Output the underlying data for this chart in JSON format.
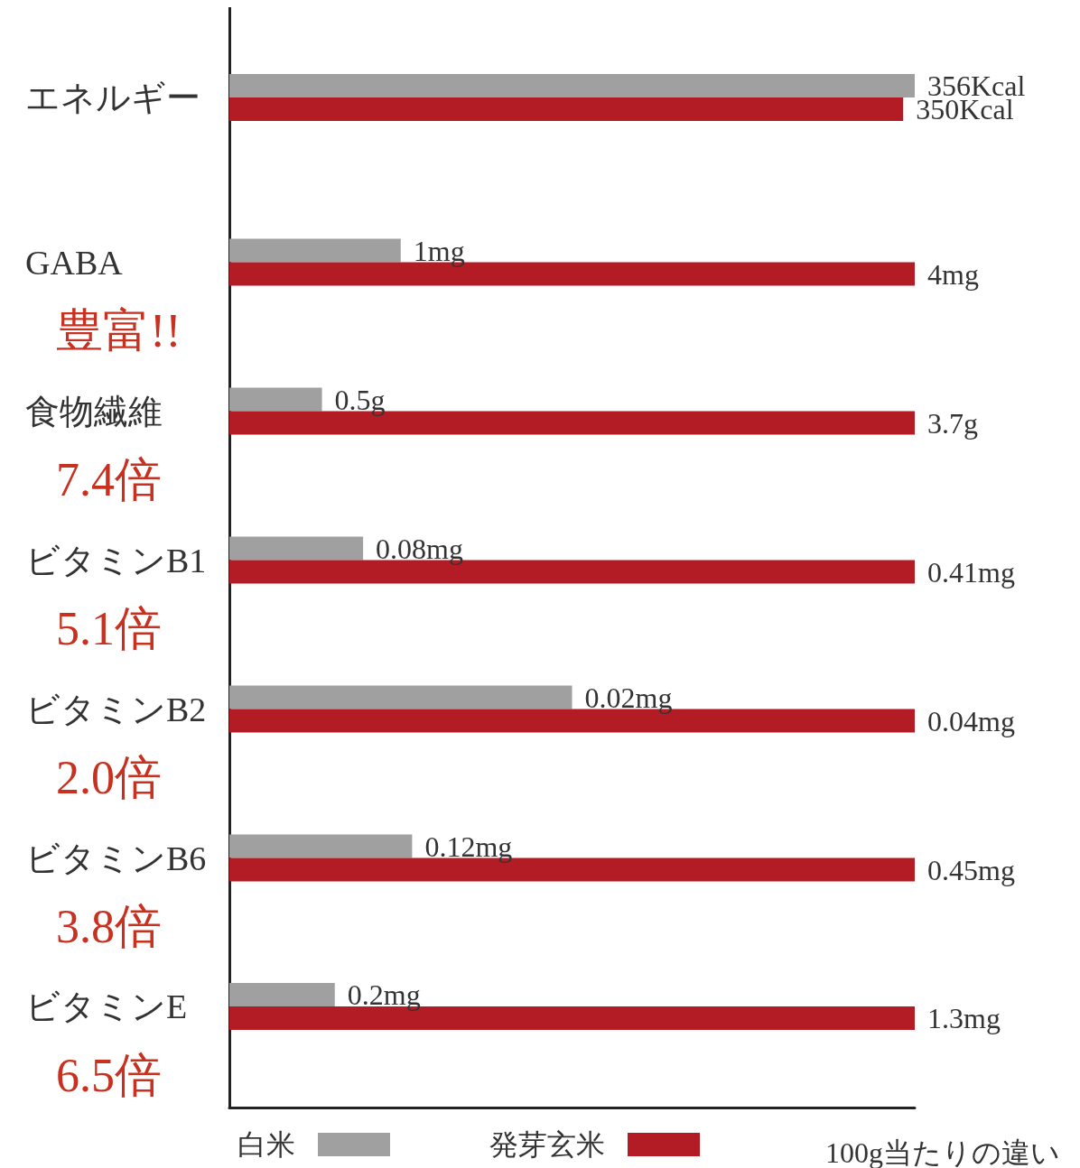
{
  "chart_data": [
    {
      "type": "bar",
      "orientation": "horizontal",
      "categories": [
        "エネルギー"
      ],
      "xlim": [
        0,
        356
      ],
      "tick_labels": "y",
      "series": [
        {
          "color": "#a0a0a0",
          "values": [
            356
          ],
          "value_labels": [
            "356Kcal"
          ]
        },
        {
          "color": "#b31c25",
          "values": [
            350
          ],
          "value_labels": [
            "350Kcal"
          ]
        }
      ]
    },
    {
      "type": "bar",
      "orientation": "horizontal",
      "categories": [
        "GABA"
      ],
      "xlim": [
        0,
        4
      ],
      "tick_labels": "y",
      "annotations": [
        "豊富!!"
      ],
      "series": [
        {
          "color": "#a0a0a0",
          "values": [
            1
          ],
          "value_labels": [
            "1mg"
          ]
        },
        {
          "color": "#b31c25",
          "values": [
            4
          ],
          "value_labels": [
            "4mg"
          ]
        }
      ]
    },
    {
      "type": "bar",
      "orientation": "horizontal",
      "categories": [
        "食物繊維"
      ],
      "xlim": [
        0,
        3.7
      ],
      "tick_labels": "y",
      "annotations": [
        "7.4倍"
      ],
      "series": [
        {
          "color": "#a0a0a0",
          "values": [
            0.5
          ],
          "value_labels": [
            "0.5g"
          ]
        },
        {
          "color": "#b31c25",
          "values": [
            3.7
          ],
          "value_labels": [
            "3.7g"
          ]
        }
      ]
    },
    {
      "type": "bar",
      "orientation": "horizontal",
      "categories": [
        "ビタミンB1"
      ],
      "xlim": [
        0,
        0.41
      ],
      "tick_labels": "y",
      "annotations": [
        "5.1倍"
      ],
      "series": [
        {
          "color": "#a0a0a0",
          "values": [
            0.08
          ],
          "value_labels": [
            "0.08mg"
          ]
        },
        {
          "color": "#b31c25",
          "values": [
            0.41
          ],
          "value_labels": [
            "0.41mg"
          ]
        }
      ]
    },
    {
      "type": "bar",
      "orientation": "horizontal",
      "categories": [
        "ビタミンB2"
      ],
      "xlim": [
        0,
        0.04
      ],
      "tick_labels": "y",
      "annotations": [
        "2.0倍"
      ],
      "series": [
        {
          "color": "#a0a0a0",
          "values": [
            0.02
          ],
          "value_labels": [
            "0.02mg"
          ]
        },
        {
          "color": "#b31c25",
          "values": [
            0.04
          ],
          "value_labels": [
            "0.04mg"
          ]
        }
      ]
    },
    {
      "type": "bar",
      "orientation": "horizontal",
      "categories": [
        "ビタミンB6"
      ],
      "xlim": [
        0,
        0.45
      ],
      "tick_labels": "y",
      "annotations": [
        "3.8倍"
      ],
      "series": [
        {
          "color": "#a0a0a0",
          "values": [
            0.12
          ],
          "value_labels": [
            "0.12mg"
          ]
        },
        {
          "color": "#b31c25",
          "values": [
            0.45
          ],
          "value_labels": [
            "0.45mg"
          ]
        }
      ]
    },
    {
      "type": "bar",
      "orientation": "horizontal",
      "categories": [
        "ビタミンE"
      ],
      "xlim": [
        0,
        1.3
      ],
      "tick_labels": "y",
      "annotations": [
        "6.5倍"
      ],
      "legend": "bottom",
      "legend_title": "100g当たりの違い",
      "series": [
        {
          "name": "白米",
          "color": "#a0a0a0",
          "values": [
            0.2
          ],
          "value_labels": [
            "0.2mg"
          ]
        },
        {
          "name": "発芽玄米",
          "color": "#b31c25",
          "values": [
            1.3
          ],
          "value_labels": [
            "1.3mg"
          ]
        }
      ]
    }
  ]
}
